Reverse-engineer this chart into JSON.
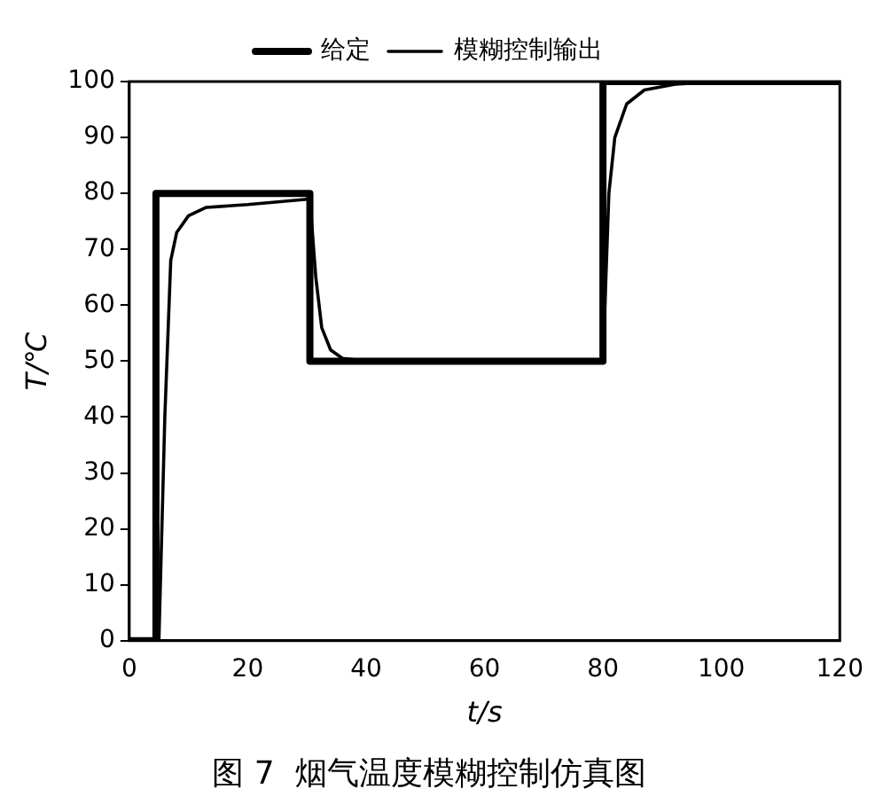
{
  "chart_data": {
    "type": "line",
    "title": "图 7  烟气温度模糊控制仿真图",
    "xlabel": "t/s",
    "ylabel": "T/℃",
    "xlim": [
      0,
      120
    ],
    "xticks": [
      0,
      20,
      40,
      60,
      80,
      100,
      120
    ],
    "ylim": [
      0,
      100
    ],
    "yticks": [
      0,
      10,
      20,
      30,
      40,
      50,
      60,
      70,
      80,
      90,
      100
    ],
    "grid": false,
    "legend": "top",
    "marker": "none",
    "line_style": "solid",
    "series": [
      {
        "name": "给定",
        "color": "#000000",
        "x": [
          0,
          4.5,
          4.5,
          30.5,
          30.5,
          80,
          80,
          120
        ],
        "values": [
          0,
          0,
          80,
          80,
          50,
          50,
          100,
          100
        ]
      },
      {
        "name": "模糊控制输出",
        "color": "#000000",
        "x": [
          0,
          5,
          6,
          7,
          8,
          10,
          13,
          20,
          30.5,
          31.5,
          32.5,
          34,
          36,
          40,
          80,
          81,
          82,
          84,
          87,
          92,
          100,
          120
        ],
        "values": [
          0,
          0,
          40,
          68,
          73,
          76,
          77.5,
          78,
          79,
          65,
          56,
          52,
          50.5,
          50,
          50,
          80,
          90,
          96,
          98.5,
          99.5,
          100,
          100
        ]
      }
    ]
  }
}
